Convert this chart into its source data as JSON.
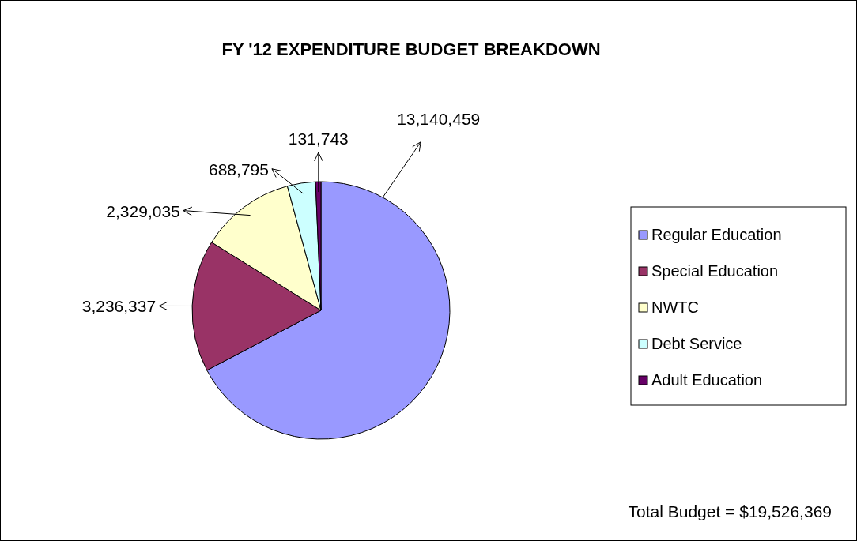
{
  "chart_data": {
    "type": "pie",
    "title": "FY '12 EXPENDITURE BUDGET BREAKDOWN",
    "categories": [
      "Regular Education",
      "Special Education",
      "NWTC",
      "Debt Service",
      "Adult Education"
    ],
    "values": [
      13140459,
      3236337,
      2329035,
      688795,
      131743
    ],
    "colors": [
      "#9999ff",
      "#993366",
      "#ffffcc",
      "#ccffff",
      "#660066"
    ],
    "value_labels": [
      "13,140,459",
      "3,236,337",
      "2,329,035",
      "688,795",
      "131,743"
    ],
    "legend": "right",
    "annotations": [
      "Total Budget = $19,526,369"
    ]
  }
}
